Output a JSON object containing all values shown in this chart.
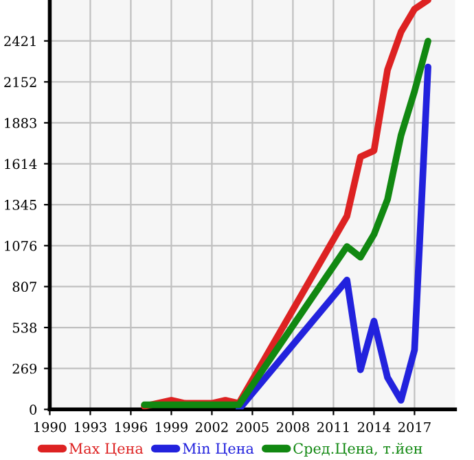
{
  "chart_data": {
    "type": "line",
    "x": [
      1997,
      1999,
      2000,
      2001,
      2002,
      2003,
      2004,
      2012,
      2013,
      2014,
      2015,
      2016,
      2017,
      2018
    ],
    "series": [
      {
        "name": "Max Цена",
        "color": "#dd2222",
        "values": [
          20,
          60,
          40,
          40,
          40,
          60,
          40,
          1270,
          1660,
          1700,
          2230,
          2480,
          2630,
          2690
        ]
      },
      {
        "name": "Min Цена",
        "color": "#2222dd",
        "values": [
          null,
          null,
          null,
          null,
          null,
          null,
          0,
          850,
          260,
          580,
          210,
          60,
          390,
          2250
        ]
      },
      {
        "name": "Сред.Цена, т.йен",
        "color": "#118811",
        "values": [
          30,
          30,
          30,
          30,
          30,
          30,
          30,
          1070,
          1000,
          1150,
          1380,
          1800,
          2090,
          2420
        ]
      }
    ],
    "xlim": [
      1990,
      2020
    ],
    "xticks": [
      1990,
      1993,
      1996,
      1999,
      2002,
      2005,
      2008,
      2011,
      2014,
      2017
    ],
    "ylim": [
      0,
      2690
    ],
    "yticks": [
      0,
      269,
      538,
      807,
      1076,
      1345,
      1614,
      1883,
      2152,
      2421
    ],
    "grid": true,
    "legend": "bottom",
    "marker": "none",
    "line_style": "solid"
  }
}
